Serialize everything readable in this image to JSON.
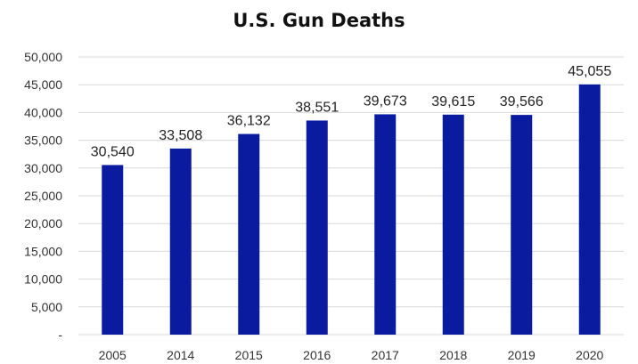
{
  "chart_data": {
    "type": "bar",
    "title": "U.S. Gun Deaths",
    "xlabel": "",
    "ylabel": "",
    "categories": [
      "2005",
      "2014",
      "2015",
      "2016",
      "2017",
      "2018",
      "2019",
      "2020"
    ],
    "values": [
      30540,
      33508,
      36132,
      38551,
      39673,
      39615,
      39566,
      45055
    ],
    "data_labels": [
      "30,540",
      "33,508",
      "36,132",
      "38,551",
      "39,673",
      "39,615",
      "39,566",
      "45,055"
    ],
    "ylim": [
      0,
      50000
    ],
    "y_ticks": [
      0,
      5000,
      10000,
      15000,
      20000,
      25000,
      30000,
      35000,
      40000,
      45000,
      50000
    ],
    "y_tick_labels": [
      "-",
      "5,000",
      "10,000",
      "15,000",
      "20,000",
      "25,000",
      "30,000",
      "35,000",
      "40,000",
      "45,000",
      "50,000"
    ],
    "grid": true,
    "legend": "none",
    "bar_color": "#0A1BA0",
    "grid_color": "#D9D9D9"
  }
}
